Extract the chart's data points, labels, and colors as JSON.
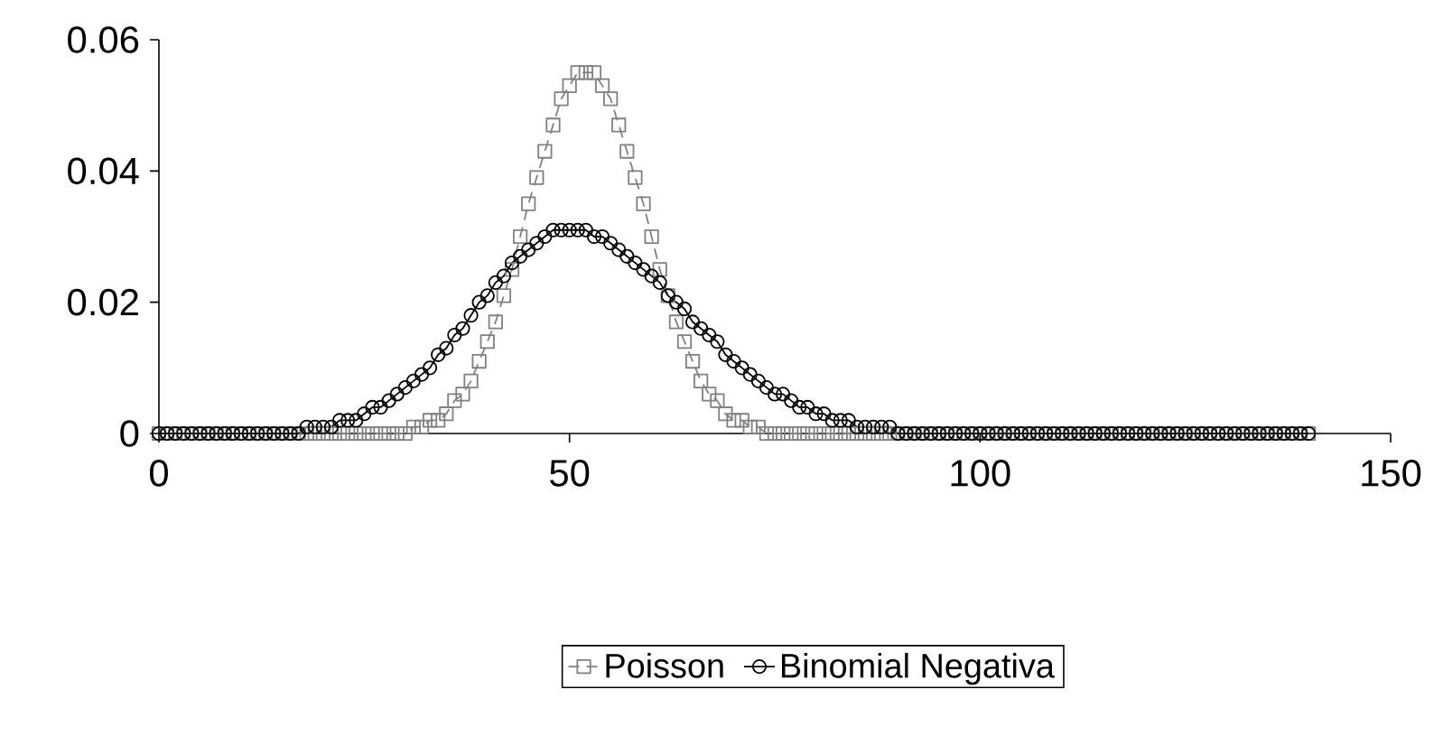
{
  "chart_data": {
    "type": "line",
    "legend": "bottom",
    "x": [
      0,
      1,
      2,
      3,
      4,
      5,
      6,
      7,
      8,
      9,
      10,
      11,
      12,
      13,
      14,
      15,
      16,
      17,
      18,
      19,
      20,
      21,
      22,
      23,
      24,
      25,
      26,
      27,
      28,
      29,
      30,
      31,
      32,
      33,
      34,
      35,
      36,
      37,
      38,
      39,
      40,
      41,
      42,
      43,
      44,
      45,
      46,
      47,
      48,
      49,
      50,
      51,
      52,
      53,
      54,
      55,
      56,
      57,
      58,
      59,
      60,
      61,
      62,
      63,
      64,
      65,
      66,
      67,
      68,
      69,
      70,
      71,
      72,
      73,
      74,
      75,
      76,
      77,
      78,
      79,
      80,
      81,
      82,
      83,
      84,
      85,
      86,
      87,
      88,
      89,
      90,
      91,
      92,
      93,
      94,
      95,
      96,
      97,
      98,
      99,
      100,
      101,
      102,
      103,
      104,
      105,
      106,
      107,
      108,
      109,
      110,
      111,
      112,
      113,
      114,
      115,
      116,
      117,
      118,
      119,
      120,
      121,
      122,
      123,
      124,
      125,
      126,
      127,
      128,
      129,
      130,
      131,
      132,
      133,
      134,
      135,
      136,
      137,
      138,
      139,
      140
    ],
    "xlim": [
      0,
      150
    ],
    "xticks": [
      0,
      50,
      100,
      150
    ],
    "ylim": [
      0,
      0.06
    ],
    "yticks": [
      0,
      0.02,
      0.04,
      0.06
    ],
    "series": [
      {
        "name": "Poisson",
        "color": "#808080",
        "marker": "square",
        "line_style": "dashed",
        "values": [
          0,
          0,
          0,
          0,
          0,
          0,
          0,
          0,
          0,
          0,
          0,
          0,
          0,
          0,
          0,
          0,
          0,
          0,
          0,
          0,
          0,
          0,
          0,
          0,
          0,
          0,
          0,
          0,
          0,
          0,
          0,
          0.001,
          0.001,
          0.002,
          0.002,
          0.003,
          0.005,
          0.006,
          0.008,
          0.011,
          0.014,
          0.017,
          0.021,
          0.025,
          0.03,
          0.035,
          0.039,
          0.043,
          0.047,
          0.051,
          0.053,
          0.055,
          0.055,
          0.055,
          0.053,
          0.051,
          0.047,
          0.043,
          0.039,
          0.035,
          0.03,
          0.025,
          0.021,
          0.017,
          0.014,
          0.011,
          0.008,
          0.006,
          0.005,
          0.003,
          0.002,
          0.002,
          0.001,
          0.001,
          0,
          0,
          0,
          0,
          0,
          0,
          0,
          0,
          0,
          0,
          0,
          0,
          0,
          0,
          0,
          0,
          0,
          0,
          0,
          0,
          0,
          0,
          0,
          0,
          0,
          0,
          0,
          0,
          0,
          0,
          0,
          0,
          0,
          0,
          0,
          0,
          0,
          0,
          0,
          0,
          0,
          0,
          0,
          0,
          0,
          0,
          0,
          0,
          0,
          0,
          0,
          0,
          0,
          0,
          0,
          0,
          0,
          0,
          0,
          0,
          0,
          0,
          0,
          0,
          0,
          0,
          0
        ]
      },
      {
        "name": "Binomial Negativa",
        "color": "#000000",
        "marker": "circle",
        "line_style": "solid",
        "values": [
          0,
          0,
          0,
          0,
          0,
          0,
          0,
          0,
          0,
          0,
          0,
          0,
          0,
          0,
          0,
          0,
          0,
          0,
          0.001,
          0.001,
          0.001,
          0.001,
          0.002,
          0.002,
          0.002,
          0.003,
          0.004,
          0.004,
          0.005,
          0.006,
          0.007,
          0.008,
          0.009,
          0.01,
          0.012,
          0.013,
          0.015,
          0.016,
          0.018,
          0.02,
          0.021,
          0.023,
          0.024,
          0.026,
          0.027,
          0.028,
          0.029,
          0.03,
          0.031,
          0.031,
          0.031,
          0.031,
          0.031,
          0.03,
          0.03,
          0.029,
          0.028,
          0.027,
          0.026,
          0.025,
          0.024,
          0.023,
          0.021,
          0.02,
          0.019,
          0.017,
          0.016,
          0.015,
          0.014,
          0.012,
          0.011,
          0.01,
          0.009,
          0.008,
          0.007,
          0.006,
          0.006,
          0.005,
          0.004,
          0.004,
          0.003,
          0.003,
          0.002,
          0.002,
          0.002,
          0.001,
          0.001,
          0.001,
          0.001,
          0.001,
          0,
          0,
          0,
          0,
          0,
          0,
          0,
          0,
          0,
          0,
          0,
          0,
          0,
          0,
          0,
          0,
          0,
          0,
          0,
          0,
          0,
          0,
          0,
          0,
          0,
          0,
          0,
          0,
          0,
          0,
          0,
          0,
          0,
          0,
          0,
          0,
          0,
          0,
          0,
          0,
          0,
          0,
          0,
          0,
          0,
          0,
          0,
          0,
          0,
          0,
          0
        ]
      }
    ]
  }
}
